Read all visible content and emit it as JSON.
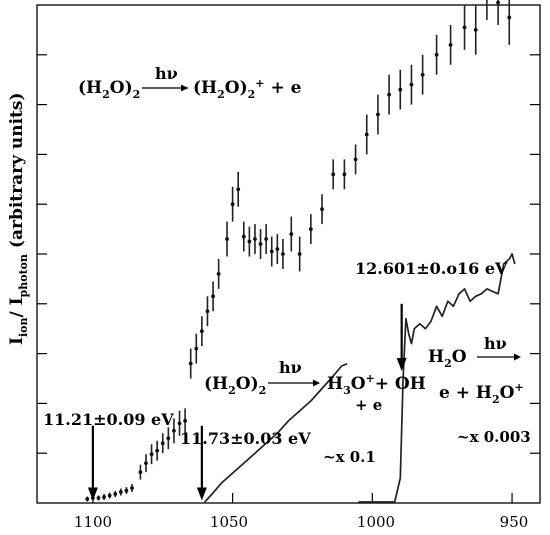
{
  "chart_data": {
    "type": "scatter",
    "ylabel_main": "I",
    "ylabel_sub_ion": "ion",
    "ylabel_slash": "/ I",
    "ylabel_sub_photon": "photon",
    "ylabel_rest": " (arbitrary units)",
    "xlim": [
      1120,
      940
    ],
    "ylim": [
      0,
      10
    ],
    "xticks": [
      1100,
      1050,
      1000,
      950
    ],
    "xtick_labels": [
      "1100",
      "1050",
      "1000",
      "950"
    ],
    "series": [
      {
        "kind": "points",
        "points": [
          [
            1102,
            0.08,
            0.05
          ],
          [
            1100,
            0.1,
            0.05
          ],
          [
            1098,
            0.1,
            0.05
          ],
          [
            1096,
            0.12,
            0.06
          ],
          [
            1094,
            0.15,
            0.06
          ],
          [
            1092,
            0.18,
            0.06
          ],
          [
            1090,
            0.22,
            0.07
          ],
          [
            1088,
            0.25,
            0.07
          ],
          [
            1086,
            0.3,
            0.08
          ],
          [
            1083,
            0.62,
            0.15
          ],
          [
            1081,
            0.8,
            0.18
          ],
          [
            1079,
            0.98,
            0.2
          ],
          [
            1077,
            1.05,
            0.2
          ],
          [
            1075,
            1.2,
            0.2
          ],
          [
            1073,
            1.3,
            0.22
          ],
          [
            1071,
            1.45,
            0.25
          ],
          [
            1069,
            1.6,
            0.25
          ],
          [
            1067,
            1.65,
            0.25
          ],
          [
            1065,
            2.8,
            0.3
          ],
          [
            1063,
            3.1,
            0.3
          ],
          [
            1061,
            3.45,
            0.3
          ],
          [
            1059,
            3.85,
            0.3
          ],
          [
            1057,
            4.15,
            0.3
          ],
          [
            1055,
            4.6,
            0.3
          ],
          [
            1052,
            5.3,
            0.35
          ],
          [
            1050,
            6.0,
            0.35
          ],
          [
            1048,
            6.3,
            0.35
          ],
          [
            1046,
            5.35,
            0.3
          ],
          [
            1044,
            5.25,
            0.3
          ],
          [
            1042,
            5.3,
            0.3
          ],
          [
            1040,
            5.2,
            0.3
          ],
          [
            1038,
            5.3,
            0.3
          ],
          [
            1036,
            5.05,
            0.3
          ],
          [
            1034,
            5.1,
            0.3
          ],
          [
            1032,
            5.0,
            0.3
          ],
          [
            1029,
            5.4,
            0.35
          ],
          [
            1026,
            5.0,
            0.35
          ],
          [
            1022,
            5.5,
            0.3
          ],
          [
            1018,
            5.9,
            0.3
          ],
          [
            1014,
            6.6,
            0.3
          ],
          [
            1010,
            6.6,
            0.3
          ],
          [
            1006,
            6.9,
            0.3
          ],
          [
            1002,
            7.4,
            0.4
          ],
          [
            998,
            7.8,
            0.4
          ],
          [
            994,
            8.2,
            0.4
          ],
          [
            990,
            8.3,
            0.4
          ],
          [
            986,
            8.4,
            0.4
          ],
          [
            982,
            8.6,
            0.4
          ],
          [
            977,
            9.0,
            0.4
          ],
          [
            972,
            9.2,
            0.4
          ],
          [
            967,
            9.55,
            0.45
          ],
          [
            963,
            9.5,
            0.5
          ],
          [
            959,
            10.25,
            0.55
          ],
          [
            955,
            10.05,
            0.45
          ],
          [
            951,
            9.75,
            0.55
          ]
        ]
      },
      {
        "kind": "line",
        "name": "H3O+ channel x0.1",
        "x": [
          1060,
          1057,
          1054,
          1050,
          1046,
          1042,
          1038,
          1034,
          1030,
          1026,
          1022,
          1018,
          1014,
          1011,
          1009
        ],
        "y": [
          0.02,
          0.2,
          0.4,
          0.6,
          0.8,
          1.0,
          1.2,
          1.4,
          1.65,
          1.85,
          2.05,
          2.3,
          2.55,
          2.75,
          2.8
        ]
      },
      {
        "kind": "line",
        "name": "H2O x0.003",
        "x": [
          1005,
          998,
          992,
          990,
          989,
          988,
          987,
          986,
          985,
          983,
          981,
          979,
          977,
          975,
          973,
          971,
          969,
          967,
          965,
          963,
          961,
          959,
          957,
          955,
          953,
          951,
          950,
          949
        ],
        "y": [
          0.02,
          0.02,
          0.02,
          0.5,
          2.5,
          3.7,
          3.4,
          3.2,
          3.5,
          3.6,
          3.5,
          3.65,
          3.95,
          3.75,
          4.05,
          3.95,
          4.2,
          4.3,
          4.05,
          4.15,
          4.2,
          4.3,
          4.25,
          4.2,
          4.8,
          4.9,
          5.0,
          4.8
        ]
      }
    ],
    "arrows": [
      {
        "x": 1100,
        "y_top": 1.55,
        "y_tip": 0.05
      },
      {
        "x": 1061,
        "y_top": 1.55,
        "y_tip": 0.05
      },
      {
        "x": 989.5,
        "y_top": 4.0,
        "y_tip": 2.65
      }
    ],
    "annotations": {
      "eq1_lhs_main": "(H",
      "eq1_lhs_sub": "2",
      "eq1_lhs_rest": "O)",
      "eq1_lhs_sub2": "2",
      "eq1_hv": "hν",
      "eq1_rhs_main": "(H",
      "eq1_rhs_sub": "2",
      "eq1_rhs_rest": "O)",
      "eq1_rhs_sub2": "2",
      "eq1_rhs_sup": "+",
      "eq1_rhs_tail": "+ e",
      "eq2_lhs_main": "(H",
      "eq2_lhs_sub": "2",
      "eq2_lhs_rest": "O)",
      "eq2_lhs_sub2": "2",
      "eq2_hv": "hν",
      "eq2_rhs_main": "H",
      "eq2_rhs_sub": "3",
      "eq2_rhs_rest": "O",
      "eq2_rhs_sup": "+",
      "eq2_rhs_tail": "+ OH",
      "eq2_rhs_e": "+ e",
      "eq3_lhs_main": "H",
      "eq3_lhs_sub": "2",
      "eq3_lhs_rest": "O",
      "eq3_hv": "hν",
      "eq3_rhs_main": "e +  H",
      "eq3_rhs_sub": "2",
      "eq3_rhs_rest": "O",
      "eq3_rhs_sup": "+",
      "threshold1": "11.21±0.09 eV",
      "threshold2": "11.73±0.03 eV",
      "threshold3": "12.601±0.o16 eV",
      "scale1": "~x 0.1",
      "scale2": "~x 0.003"
    }
  }
}
